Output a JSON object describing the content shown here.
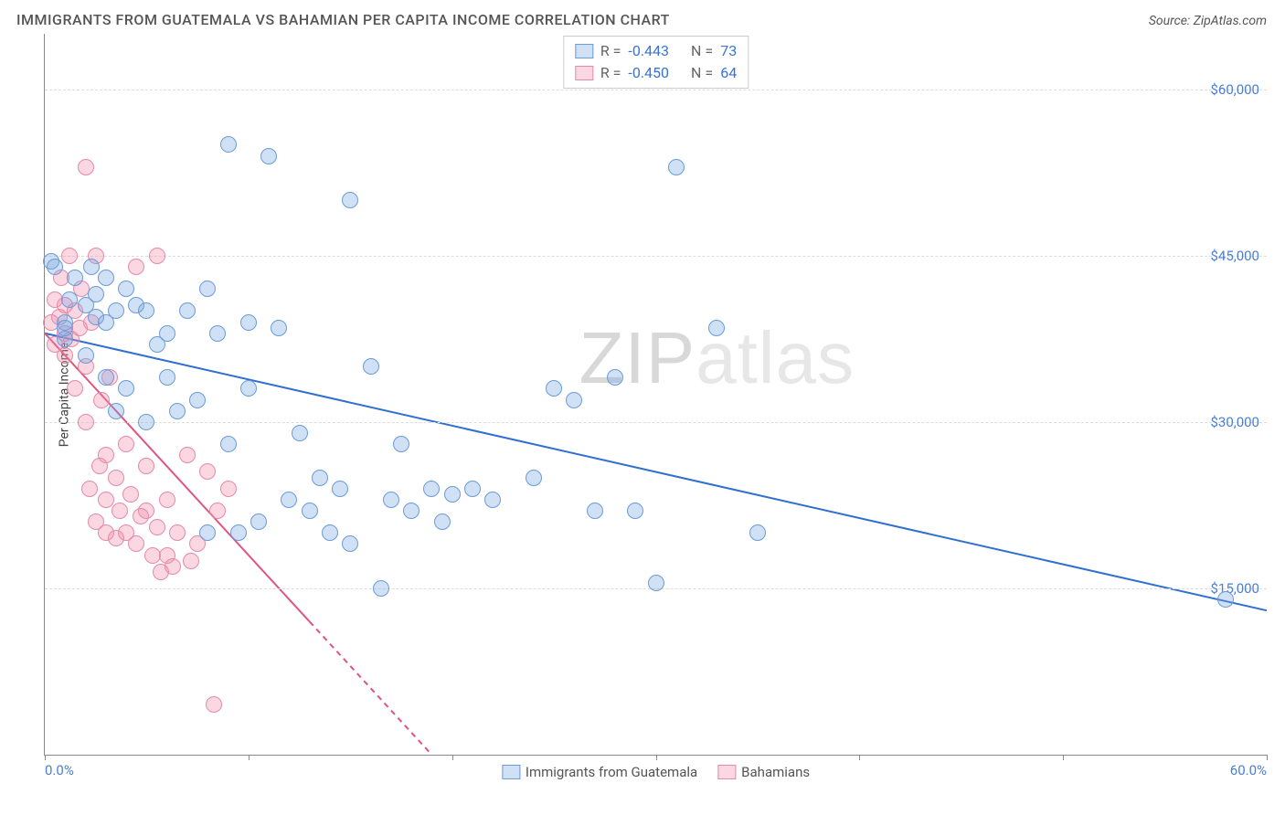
{
  "title": "IMMIGRANTS FROM GUATEMALA VS BAHAMIAN PER CAPITA INCOME CORRELATION CHART",
  "source_label": "Source: ",
  "source_name": "ZipAtlas.com",
  "watermark_a": "ZIP",
  "watermark_b": "atlas",
  "chart": {
    "type": "scatter",
    "xlim": [
      0,
      60
    ],
    "ylim": [
      0,
      65000
    ],
    "x_start_label": "0.0%",
    "x_end_label": "60.0%",
    "x_ticks": [
      0,
      10,
      20,
      30,
      40,
      50,
      60
    ],
    "y_ticks": [
      15000,
      30000,
      45000,
      60000
    ],
    "y_tick_labels": [
      "$15,000",
      "$30,000",
      "$45,000",
      "$60,000"
    ],
    "y_axis_title": "Per Capita Income",
    "grid_color": "#dddddd",
    "axis_color": "#888888",
    "tick_label_color": "#4a7fd6",
    "series": [
      {
        "name": "Immigrants from Guatemala",
        "fill": "rgba(120,165,225,0.35)",
        "stroke": "#6b9bd8",
        "line_color": "#2f6fd0",
        "r_value": "-0.443",
        "n_value": "73",
        "trend": {
          "x1": 0,
          "y1": 38000,
          "x2": 60,
          "y2": 13000
        },
        "marker_r": 9,
        "points": [
          [
            0.3,
            44500
          ],
          [
            0.5,
            44000
          ],
          [
            1,
            39000
          ],
          [
            1,
            37500
          ],
          [
            1,
            38500
          ],
          [
            1.2,
            41000
          ],
          [
            1.5,
            43000
          ],
          [
            2,
            40500
          ],
          [
            2,
            36000
          ],
          [
            2.3,
            44000
          ],
          [
            2.5,
            39500
          ],
          [
            2.5,
            41500
          ],
          [
            3,
            43000
          ],
          [
            3,
            39000
          ],
          [
            3,
            34000
          ],
          [
            3.5,
            40000
          ],
          [
            3.5,
            31000
          ],
          [
            4,
            42000
          ],
          [
            4,
            33000
          ],
          [
            4.5,
            40500
          ],
          [
            5,
            40000
          ],
          [
            5,
            30000
          ],
          [
            5.5,
            37000
          ],
          [
            6,
            34000
          ],
          [
            6,
            38000
          ],
          [
            6.5,
            31000
          ],
          [
            7,
            40000
          ],
          [
            7.5,
            32000
          ],
          [
            8,
            42000
          ],
          [
            8,
            20000
          ],
          [
            8.5,
            38000
          ],
          [
            9,
            55000
          ],
          [
            9,
            28000
          ],
          [
            9.5,
            20000
          ],
          [
            10,
            39000
          ],
          [
            10,
            33000
          ],
          [
            10.5,
            21000
          ],
          [
            11,
            54000
          ],
          [
            11.5,
            38500
          ],
          [
            12,
            23000
          ],
          [
            12.5,
            29000
          ],
          [
            13,
            22000
          ],
          [
            13.5,
            25000
          ],
          [
            14,
            20000
          ],
          [
            14.5,
            24000
          ],
          [
            15,
            50000
          ],
          [
            15,
            19000
          ],
          [
            16,
            35000
          ],
          [
            16.5,
            15000
          ],
          [
            17,
            23000
          ],
          [
            17.5,
            28000
          ],
          [
            18,
            22000
          ],
          [
            19,
            24000
          ],
          [
            19.5,
            21000
          ],
          [
            20,
            23500
          ],
          [
            21,
            24000
          ],
          [
            22,
            23000
          ],
          [
            24,
            25000
          ],
          [
            25,
            33000
          ],
          [
            26,
            32000
          ],
          [
            27,
            22000
          ],
          [
            28,
            34000
          ],
          [
            29,
            22000
          ],
          [
            30,
            15500
          ],
          [
            31,
            53000
          ],
          [
            33,
            38500
          ],
          [
            35,
            20000
          ],
          [
            58,
            14000
          ]
        ]
      },
      {
        "name": "Bahamians",
        "fill": "rgba(240,140,170,0.35)",
        "stroke": "#e48aab",
        "line_color": "#e0547f",
        "r_value": "-0.450",
        "n_value": "64",
        "trend": {
          "x1": 0,
          "y1": 38000,
          "x2": 19,
          "y2": 0,
          "dash_from_x": 13
        },
        "marker_r": 9,
        "points": [
          [
            0.3,
            39000
          ],
          [
            0.5,
            41000
          ],
          [
            0.5,
            37000
          ],
          [
            0.7,
            39500
          ],
          [
            0.8,
            43000
          ],
          [
            1,
            38000
          ],
          [
            1,
            36000
          ],
          [
            1,
            40500
          ],
          [
            1.2,
            45000
          ],
          [
            1.3,
            37500
          ],
          [
            1.5,
            33000
          ],
          [
            1.5,
            40000
          ],
          [
            1.7,
            38500
          ],
          [
            1.8,
            42000
          ],
          [
            2,
            53000
          ],
          [
            2,
            30000
          ],
          [
            2,
            35000
          ],
          [
            2.2,
            24000
          ],
          [
            2.3,
            39000
          ],
          [
            2.5,
            45000
          ],
          [
            2.5,
            21000
          ],
          [
            2.7,
            26000
          ],
          [
            2.8,
            32000
          ],
          [
            3,
            20000
          ],
          [
            3,
            27000
          ],
          [
            3,
            23000
          ],
          [
            3.2,
            34000
          ],
          [
            3.5,
            19500
          ],
          [
            3.5,
            25000
          ],
          [
            3.7,
            22000
          ],
          [
            4,
            20000
          ],
          [
            4,
            28000
          ],
          [
            4.2,
            23500
          ],
          [
            4.5,
            44000
          ],
          [
            4.5,
            19000
          ],
          [
            4.7,
            21500
          ],
          [
            5,
            22000
          ],
          [
            5,
            26000
          ],
          [
            5.3,
            18000
          ],
          [
            5.5,
            20500
          ],
          [
            5.5,
            45000
          ],
          [
            5.7,
            16500
          ],
          [
            6,
            18000
          ],
          [
            6,
            23000
          ],
          [
            6.3,
            17000
          ],
          [
            6.5,
            20000
          ],
          [
            7,
            27000
          ],
          [
            7.2,
            17500
          ],
          [
            7.5,
            19000
          ],
          [
            8,
            25500
          ],
          [
            8.3,
            4500
          ],
          [
            8.5,
            22000
          ],
          [
            9,
            24000
          ]
        ]
      }
    ],
    "legend": {
      "series_a": "Immigrants from Guatemala",
      "series_b": "Bahamians"
    },
    "stats_labels": {
      "r": "R =",
      "n": "N ="
    }
  }
}
